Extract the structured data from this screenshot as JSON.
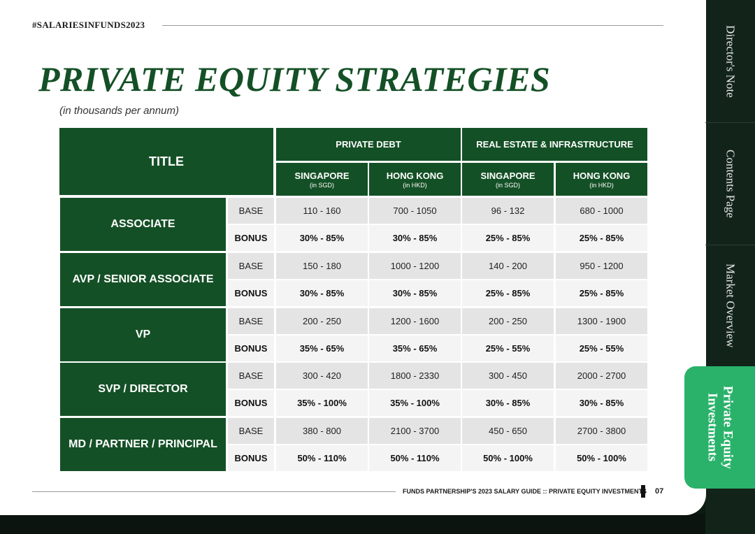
{
  "header": {
    "hashtag": "#SALARIESINFUNDS2023"
  },
  "page_title": "PRIVATE EQUITY STRATEGIES",
  "subtitle": "(in thousands per annum)",
  "table": {
    "title_header": "TITLE",
    "groups": [
      "PRIVATE DEBT",
      "REAL ESTATE & INFRASTRUCTURE"
    ],
    "columns": [
      {
        "name": "SINGAPORE",
        "unit": "(in SGD)"
      },
      {
        "name": "HONG KONG",
        "unit": "(in HKD)"
      },
      {
        "name": "SINGAPORE",
        "unit": "(in SGD)"
      },
      {
        "name": "HONG KONG",
        "unit": "(in HKD)"
      }
    ],
    "base_label": "BASE",
    "bonus_label": "BONUS",
    "rows": [
      {
        "title": "ASSOCIATE",
        "base": [
          "110 - 160",
          "700 - 1050",
          "96 - 132",
          "680 - 1000"
        ],
        "bonus": [
          "30% - 85%",
          "30% - 85%",
          "25% - 85%",
          "25% - 85%"
        ]
      },
      {
        "title": "AVP / SENIOR ASSOCIATE",
        "base": [
          "150 - 180",
          "1000 - 1200",
          "140 - 200",
          "950 - 1200"
        ],
        "bonus": [
          "30% - 85%",
          "30% - 85%",
          "25% - 85%",
          "25% - 85%"
        ]
      },
      {
        "title": "VP",
        "base": [
          "200 - 250",
          "1200 - 1600",
          "200 - 250",
          "1300 - 1900"
        ],
        "bonus": [
          "35% - 65%",
          "35% - 65%",
          "25% - 55%",
          "25% - 55%"
        ]
      },
      {
        "title": "SVP / DIRECTOR",
        "base": [
          "300 - 420",
          "1800 - 2330",
          "300 - 450",
          "2000 - 2700"
        ],
        "bonus": [
          "35% - 100%",
          "35% - 100%",
          "30% - 85%",
          "30% - 85%"
        ]
      },
      {
        "title": "MD / PARTNER / PRINCIPAL",
        "base": [
          "380 - 800",
          "2100 - 3700",
          "450 - 650",
          "2700 - 3800"
        ],
        "bonus": [
          "50% - 110%",
          "50% - 110%",
          "50% - 100%",
          "50% - 100%"
        ]
      }
    ]
  },
  "side_nav": {
    "items": [
      "Director's Note",
      "Contents Page",
      "Market Overview"
    ],
    "active": "Private Equity Investments"
  },
  "footer": {
    "text": "FUNDS PARTNERSHIP'S 2023 SALARY GUIDE :: PRIVATE EQUITY INVESTMENTS",
    "page_number": "07"
  },
  "colors": {
    "brand_green": "#145026",
    "accent_green": "#2ab26a",
    "base_row": "#e4e4e4",
    "bonus_row": "#f4f4f4"
  }
}
